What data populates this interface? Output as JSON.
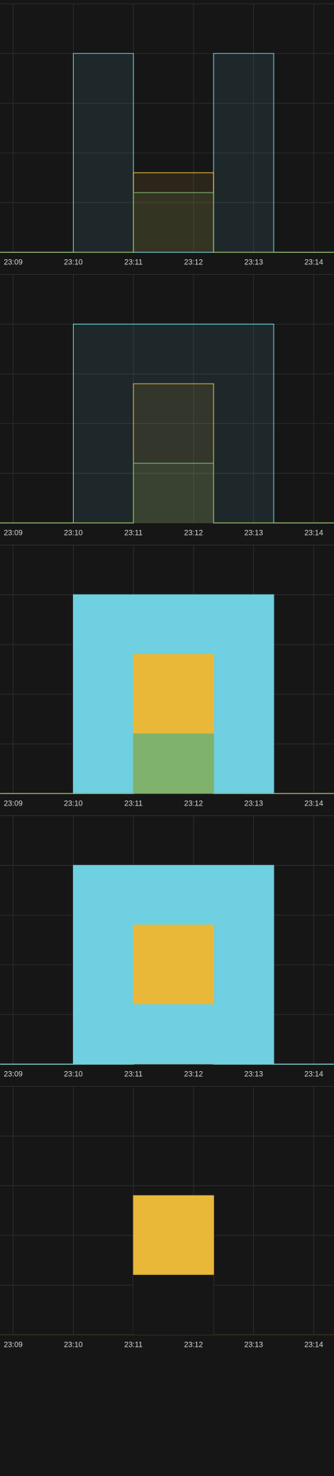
{
  "chart_data": [
    {
      "type": "area",
      "fill_opacity": 0.1,
      "grid": true,
      "xlim": [
        "23:08:47",
        "23:14:20"
      ],
      "ylim": [
        0,
        5
      ],
      "yticks": [
        0,
        1,
        2,
        3,
        4,
        5
      ],
      "xticks": [
        "23:09",
        "23:10",
        "23:11",
        "23:12",
        "23:13",
        "23:14"
      ],
      "series": [
        {
          "color": "#6ed0e0",
          "x": [
            "23:08:47",
            "23:10:00",
            "23:10:00",
            "23:11:00",
            "23:11:00",
            "23:12:20",
            "23:12:20",
            "23:13:20",
            "23:13:20",
            "23:14:20"
          ],
          "values": [
            0,
            0,
            4,
            4,
            0,
            0,
            4,
            4,
            0,
            0
          ]
        },
        {
          "color": "#eab839",
          "x": [
            "23:08:47",
            "23:11:00",
            "23:11:00",
            "23:12:20",
            "23:12:20",
            "23:14:20"
          ],
          "values": [
            0,
            0,
            1.6,
            1.6,
            0,
            0
          ]
        },
        {
          "color": "#7eb26d",
          "x": [
            "23:08:47",
            "23:11:00",
            "23:11:00",
            "23:12:20",
            "23:12:20",
            "23:14:20"
          ],
          "values": [
            0,
            0,
            1.2,
            1.2,
            0,
            0
          ]
        }
      ]
    },
    {
      "type": "area",
      "fill_opacity": 0.1,
      "grid": true,
      "xlim": [
        "23:08:47",
        "23:14:20"
      ],
      "ylim": [
        0,
        5
      ],
      "yticks": [
        0,
        1,
        2,
        3,
        4,
        5
      ],
      "xticks": [
        "23:09",
        "23:10",
        "23:11",
        "23:12",
        "23:13",
        "23:14"
      ],
      "series": [
        {
          "color": "#6ed0e0",
          "x": [
            "23:08:47",
            "23:10:00",
            "23:10:00",
            "23:13:20",
            "23:13:20",
            "23:14:20"
          ],
          "values": [
            0,
            0,
            4,
            4,
            0,
            0
          ]
        },
        {
          "color": "#eab839",
          "x": [
            "23:08:47",
            "23:11:00",
            "23:11:00",
            "23:12:20",
            "23:12:20",
            "23:14:20"
          ],
          "values": [
            0,
            0,
            2.8,
            2.8,
            0,
            0
          ]
        },
        {
          "color": "#7eb26d",
          "x": [
            "23:08:47",
            "23:11:00",
            "23:11:00",
            "23:12:20",
            "23:12:20",
            "23:14:20"
          ],
          "values": [
            0,
            0,
            1.2,
            1.2,
            0,
            0
          ]
        }
      ]
    },
    {
      "type": "area",
      "fill_opacity": 1,
      "grid": true,
      "xlim": [
        "23:08:47",
        "23:14:20"
      ],
      "ylim": [
        0,
        5
      ],
      "yticks": [
        0,
        1,
        2,
        3,
        4,
        5
      ],
      "xticks": [
        "23:09",
        "23:10",
        "23:11",
        "23:12",
        "23:13",
        "23:14"
      ],
      "series": [
        {
          "color": "#6ed0e0",
          "x": [
            "23:08:47",
            "23:10:00",
            "23:10:00",
            "23:13:20",
            "23:13:20",
            "23:14:20"
          ],
          "values": [
            0,
            0,
            4,
            4,
            0,
            0
          ]
        },
        {
          "color": "#eab839",
          "x": [
            "23:08:47",
            "23:11:00",
            "23:11:00",
            "23:12:20",
            "23:12:20",
            "23:14:20"
          ],
          "values": [
            0,
            0,
            2.8,
            2.8,
            0,
            0
          ]
        },
        {
          "color": "#7eb26d",
          "x": [
            "23:08:47",
            "23:11:00",
            "23:11:00",
            "23:12:20",
            "23:12:20",
            "23:14:20"
          ],
          "values": [
            0,
            0,
            1.2,
            1.2,
            0,
            0
          ]
        }
      ]
    },
    {
      "type": "area",
      "fill_opacity": 1,
      "grid": true,
      "xlim": [
        "23:08:47",
        "23:14:20"
      ],
      "ylim": [
        0,
        5
      ],
      "yticks": [
        0,
        1,
        2,
        3,
        4,
        5
      ],
      "xticks": [
        "23:09",
        "23:10",
        "23:11",
        "23:12",
        "23:13",
        "23:14"
      ],
      "series": [
        {
          "color": "#6ed0e0",
          "x": [
            "23:08:47",
            "23:10:00",
            "23:10:00",
            "23:13:20",
            "23:13:20",
            "23:14:20"
          ],
          "values": [
            0,
            0,
            4,
            4,
            0,
            0
          ]
        },
        {
          "color": "#eab839",
          "x": [
            "23:08:47",
            "23:11:00",
            "23:11:00",
            "23:12:20",
            "23:12:20",
            "23:14:20"
          ],
          "values": [
            0,
            0,
            2.8,
            2.8,
            0,
            0
          ]
        },
        {
          "color": "#6ed0e0",
          "x": [
            "23:08:47",
            "23:11:00",
            "23:11:00",
            "23:12:20",
            "23:12:20",
            "23:14:20"
          ],
          "values": [
            0,
            0,
            1.2,
            1.2,
            0,
            0
          ]
        }
      ]
    },
    {
      "type": "area",
      "fill_opacity": 1,
      "grid": true,
      "xlim": [
        "23:08:47",
        "23:14:20"
      ],
      "ylim": [
        0,
        5
      ],
      "yticks": [
        0,
        1,
        2,
        3,
        4,
        5
      ],
      "xticks": [
        "23:09",
        "23:10",
        "23:11",
        "23:12",
        "23:13",
        "23:14"
      ],
      "series": [
        {
          "color": "#eab839",
          "x": [
            "23:08:47",
            "23:11:00",
            "23:11:00",
            "23:12:20",
            "23:12:20",
            "23:14:20"
          ],
          "values": [
            0,
            0,
            2.8,
            2.8,
            0,
            0
          ]
        },
        {
          "color": "#161616",
          "x": [
            "23:08:47",
            "23:11:00",
            "23:11:00",
            "23:12:20",
            "23:12:20",
            "23:14:20"
          ],
          "values": [
            0,
            0,
            1.2,
            1.2,
            0,
            0
          ]
        }
      ]
    }
  ]
}
